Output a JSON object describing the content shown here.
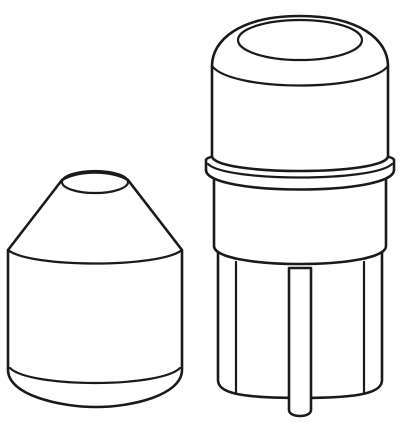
{
  "illustration": {
    "subjects": [
      "short-rounded-cap",
      "capped-ribbed-plug"
    ],
    "colors": {
      "stroke": "#1a1a1a",
      "fill": "#ffffff",
      "background": "#ffffff"
    }
  }
}
